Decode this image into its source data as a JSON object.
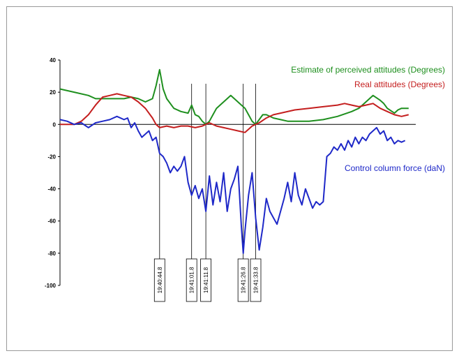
{
  "chart_data": {
    "type": "line",
    "title": "",
    "xlabel": "",
    "ylabel": "",
    "ylim": [
      -100,
      40
    ],
    "yticks": [
      40,
      20,
      0,
      -20,
      -40,
      -60,
      -80,
      -100
    ],
    "grid": false,
    "x_range": [
      0,
      100
    ],
    "time_markers": [
      {
        "label": "19:40:44.8",
        "x": 28
      },
      {
        "label": "19:41:01.8",
        "x": 37
      },
      {
        "label": "19:41:11.8",
        "x": 41
      },
      {
        "label": "19:41:26.8",
        "x": 51.5
      },
      {
        "label": "19:41:33.8",
        "x": 55
      }
    ],
    "series": [
      {
        "name": "Estimate of perceived attitudes (Degrees)",
        "color": "#1e8f1e",
        "points": [
          [
            0,
            22
          ],
          [
            4,
            20
          ],
          [
            8,
            18
          ],
          [
            10,
            16
          ],
          [
            14,
            16
          ],
          [
            18,
            16
          ],
          [
            20,
            17
          ],
          [
            22,
            16
          ],
          [
            24,
            14
          ],
          [
            26,
            16
          ],
          [
            27,
            24
          ],
          [
            28,
            34
          ],
          [
            29,
            22
          ],
          [
            30,
            16
          ],
          [
            32,
            10
          ],
          [
            34,
            8
          ],
          [
            36,
            7
          ],
          [
            37,
            12
          ],
          [
            38,
            6
          ],
          [
            39,
            5
          ],
          [
            40,
            2
          ],
          [
            41,
            0
          ],
          [
            42,
            2
          ],
          [
            43,
            6
          ],
          [
            44,
            10
          ],
          [
            46,
            14
          ],
          [
            48,
            18
          ],
          [
            49,
            16
          ],
          [
            50,
            14
          ],
          [
            52,
            10
          ],
          [
            53,
            6
          ],
          [
            54,
            2
          ],
          [
            55,
            0
          ],
          [
            56,
            3
          ],
          [
            57,
            6
          ],
          [
            58,
            6
          ],
          [
            60,
            4
          ],
          [
            62,
            3
          ],
          [
            64,
            2
          ],
          [
            66,
            2
          ],
          [
            70,
            2
          ],
          [
            74,
            3
          ],
          [
            78,
            5
          ],
          [
            82,
            8
          ],
          [
            84,
            10
          ],
          [
            86,
            14
          ],
          [
            88,
            18
          ],
          [
            90,
            15
          ],
          [
            91,
            13
          ],
          [
            92,
            10
          ],
          [
            94,
            7
          ],
          [
            95,
            9
          ],
          [
            96,
            10
          ],
          [
            98,
            10
          ]
        ]
      },
      {
        "name": "Real attitudes (Degrees)",
        "color": "#c41e1e",
        "points": [
          [
            0,
            0
          ],
          [
            4,
            0
          ],
          [
            6,
            2
          ],
          [
            8,
            6
          ],
          [
            10,
            12
          ],
          [
            12,
            17
          ],
          [
            14,
            18
          ],
          [
            16,
            19
          ],
          [
            18,
            18
          ],
          [
            20,
            17
          ],
          [
            22,
            14
          ],
          [
            24,
            10
          ],
          [
            26,
            4
          ],
          [
            27,
            0
          ],
          [
            28,
            -2
          ],
          [
            30,
            -1
          ],
          [
            32,
            -2
          ],
          [
            34,
            -1
          ],
          [
            36,
            -1
          ],
          [
            38,
            -2
          ],
          [
            40,
            -1
          ],
          [
            42,
            1
          ],
          [
            44,
            -1
          ],
          [
            46,
            -2
          ],
          [
            48,
            -3
          ],
          [
            50,
            -4
          ],
          [
            52,
            -5
          ],
          [
            53,
            -3
          ],
          [
            54,
            -1
          ],
          [
            56,
            1
          ],
          [
            58,
            4
          ],
          [
            60,
            6
          ],
          [
            62,
            7
          ],
          [
            66,
            9
          ],
          [
            70,
            10
          ],
          [
            74,
            11
          ],
          [
            78,
            12
          ],
          [
            80,
            13
          ],
          [
            82,
            12
          ],
          [
            84,
            11
          ],
          [
            86,
            12
          ],
          [
            88,
            13
          ],
          [
            90,
            10
          ],
          [
            92,
            8
          ],
          [
            94,
            6
          ],
          [
            96,
            5
          ],
          [
            98,
            6
          ]
        ]
      },
      {
        "name": "Control column force (daN)",
        "color": "#1e28c8",
        "points": [
          [
            0,
            3
          ],
          [
            2,
            2
          ],
          [
            4,
            0
          ],
          [
            6,
            1
          ],
          [
            8,
            -2
          ],
          [
            10,
            1
          ],
          [
            12,
            2
          ],
          [
            14,
            3
          ],
          [
            16,
            5
          ],
          [
            18,
            3
          ],
          [
            19,
            4
          ],
          [
            20,
            -2
          ],
          [
            21,
            1
          ],
          [
            22,
            -4
          ],
          [
            23,
            -8
          ],
          [
            24,
            -6
          ],
          [
            25,
            -4
          ],
          [
            26,
            -10
          ],
          [
            27,
            -8
          ],
          [
            28,
            -18
          ],
          [
            29,
            -20
          ],
          [
            30,
            -24
          ],
          [
            31,
            -30
          ],
          [
            32,
            -26
          ],
          [
            33,
            -29
          ],
          [
            34,
            -26
          ],
          [
            35,
            -20
          ],
          [
            36,
            -36
          ],
          [
            37,
            -44
          ],
          [
            38,
            -38
          ],
          [
            39,
            -46
          ],
          [
            40,
            -40
          ],
          [
            41,
            -54
          ],
          [
            42,
            -32
          ],
          [
            43,
            -50
          ],
          [
            44,
            -36
          ],
          [
            45,
            -48
          ],
          [
            46,
            -30
          ],
          [
            47,
            -54
          ],
          [
            48,
            -40
          ],
          [
            49,
            -34
          ],
          [
            50,
            -26
          ],
          [
            51,
            -64
          ],
          [
            51.5,
            -80
          ],
          [
            52,
            -66
          ],
          [
            53,
            -44
          ],
          [
            54,
            -30
          ],
          [
            55,
            -58
          ],
          [
            56,
            -78
          ],
          [
            57,
            -64
          ],
          [
            58,
            -46
          ],
          [
            59,
            -54
          ],
          [
            60,
            -58
          ],
          [
            61,
            -62
          ],
          [
            62,
            -54
          ],
          [
            63,
            -46
          ],
          [
            64,
            -36
          ],
          [
            65,
            -48
          ],
          [
            66,
            -30
          ],
          [
            67,
            -44
          ],
          [
            68,
            -50
          ],
          [
            69,
            -40
          ],
          [
            70,
            -46
          ],
          [
            71,
            -52
          ],
          [
            72,
            -48
          ],
          [
            73,
            -50
          ],
          [
            74,
            -48
          ],
          [
            75,
            -20
          ],
          [
            76,
            -18
          ],
          [
            77,
            -14
          ],
          [
            78,
            -16
          ],
          [
            79,
            -12
          ],
          [
            80,
            -16
          ],
          [
            81,
            -10
          ],
          [
            82,
            -14
          ],
          [
            83,
            -8
          ],
          [
            84,
            -12
          ],
          [
            85,
            -8
          ],
          [
            86,
            -10
          ],
          [
            87,
            -6
          ],
          [
            88,
            -4
          ],
          [
            89,
            -2
          ],
          [
            90,
            -6
          ],
          [
            91,
            -4
          ],
          [
            92,
            -10
          ],
          [
            93,
            -8
          ],
          [
            94,
            -12
          ],
          [
            95,
            -10
          ],
          [
            96,
            -11
          ],
          [
            97,
            -10
          ]
        ]
      }
    ],
    "legend_placement": "inline-right"
  }
}
